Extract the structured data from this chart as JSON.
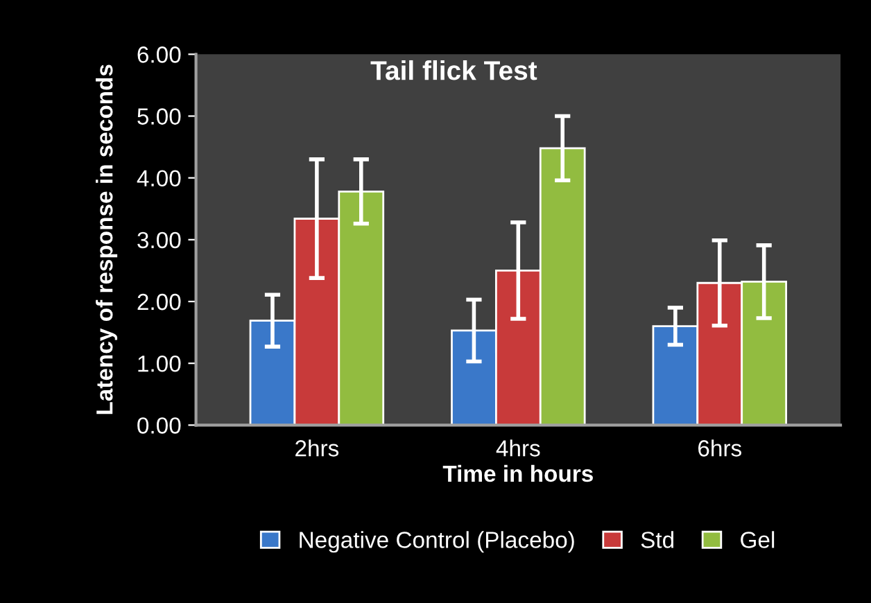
{
  "chart_data": {
    "type": "bar",
    "title": "Tail flick Test",
    "xlabel": "Time in hours",
    "ylabel": "Latency of response in seconds",
    "categories": [
      "2hrs",
      "4hrs",
      "6hrs"
    ],
    "series": [
      {
        "name": "Negative Control (Placebo)",
        "color": "#3a78c9",
        "values": [
          1.69,
          1.53,
          1.6
        ],
        "errors": [
          0.42,
          0.5,
          0.3
        ]
      },
      {
        "name": "Std",
        "color": "#c83a3a",
        "values": [
          3.34,
          2.5,
          2.3
        ],
        "errors": [
          0.96,
          0.78,
          0.69
        ]
      },
      {
        "name": "Gel",
        "color": "#92bc40",
        "values": [
          3.78,
          4.48,
          2.32
        ],
        "errors": [
          0.52,
          0.52,
          0.59
        ]
      }
    ],
    "ylim": [
      0,
      6
    ],
    "yticks": [
      {
        "value": 0,
        "label": "0.00"
      },
      {
        "value": 1,
        "label": "1.00"
      },
      {
        "value": 2,
        "label": "2.00"
      },
      {
        "value": 3,
        "label": "3.00"
      },
      {
        "value": 4,
        "label": "4.00"
      },
      {
        "value": 5,
        "label": "5.00"
      },
      {
        "value": 6,
        "label": "6.00"
      }
    ],
    "grid": false,
    "legend": "bottom"
  }
}
